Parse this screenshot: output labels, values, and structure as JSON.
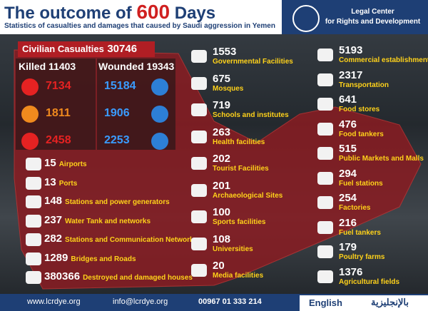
{
  "header": {
    "title_start": "The outcome of",
    "title_number": "600",
    "title_end": "Days",
    "subtitle": "Statistics of casualties and damages that caused by Saudi aggression in Yemen",
    "org_line1": "Legal Center",
    "org_line2": "for Rights and Development"
  },
  "casualties": {
    "label": "Civilian Casualties",
    "total": 30746,
    "killed": {
      "label": "Killed",
      "total": 11403,
      "values": [
        7134,
        1811,
        2458
      ]
    },
    "wounded": {
      "label": "Wounded",
      "total": 19343,
      "values": [
        15184,
        1906,
        2253
      ]
    }
  },
  "left_list": [
    {
      "value": 15,
      "label": "Airports"
    },
    {
      "value": 13,
      "label": "Ports"
    },
    {
      "value": 148,
      "label": "Stations and power generators"
    },
    {
      "value": 237,
      "label": "Water Tank and networks"
    },
    {
      "value": 282,
      "label": "Stations and Communication Networks"
    },
    {
      "value": 1289,
      "label": "Bridges and Roads"
    },
    {
      "value": 380366,
      "label": "Destroyed and damaged houses"
    }
  ],
  "middle_list": [
    {
      "value": 1553,
      "label": "Governmental Facilities"
    },
    {
      "value": 675,
      "label": "Mosques"
    },
    {
      "value": 719,
      "label": "Schools and institutes"
    },
    {
      "value": 263,
      "label": "Health facilities"
    },
    {
      "value": 202,
      "label": "Tourist Facilities"
    },
    {
      "value": 201,
      "label": "Archaeological Sites"
    },
    {
      "value": 100,
      "label": "Sports facilities"
    },
    {
      "value": 108,
      "label": "Universities"
    },
    {
      "value": 20,
      "label": "Media facilities"
    }
  ],
  "right_list": [
    {
      "value": 5193,
      "label": "Commercial establishments"
    },
    {
      "value": 2317,
      "label": "Transportation"
    },
    {
      "value": 641,
      "label": "Food stores"
    },
    {
      "value": 476,
      "label": "Food tankers"
    },
    {
      "value": 515,
      "label": "Public Markets and Malls"
    },
    {
      "value": 294,
      "label": "Fuel stations"
    },
    {
      "value": 254,
      "label": "Factories"
    },
    {
      "value": 216,
      "label": "Fuel tankers"
    },
    {
      "value": 179,
      "label": "Poultry farms"
    },
    {
      "value": 1376,
      "label": "Agricultural fields"
    }
  ],
  "footer": {
    "website": "www.lcrdye.org",
    "email": "info@lcrdye.org",
    "phone": "00967 01 333 214",
    "language": "English",
    "language_ar": "بالإنجليزية"
  }
}
